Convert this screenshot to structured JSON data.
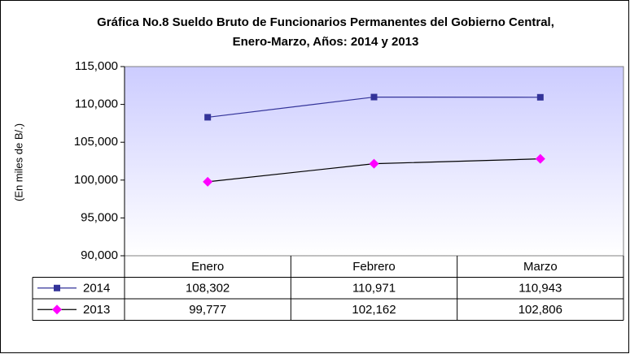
{
  "chart_data": {
    "type": "line",
    "title": "Gráfica No.8 Sueldo Bruto de Funcionarios Permanentes del Gobierno Central, Enero-Marzo, Años: 2014 y 2013",
    "ylabel": "(En miles de B/.)",
    "categories": [
      "Enero",
      "Febrero",
      "Marzo"
    ],
    "series": [
      {
        "name": "2014",
        "color": "#333399",
        "marker_color": "#333399",
        "marker": "square",
        "values": [
          108302,
          110971,
          110943
        ],
        "value_labels": [
          "108,302",
          "110,971",
          "110,943"
        ]
      },
      {
        "name": "2013",
        "color": "#000000",
        "marker_color": "#ff00ff",
        "marker": "diamond",
        "values": [
          99777,
          102162,
          102806
        ],
        "value_labels": [
          "99,777",
          "102,162",
          "102,806"
        ]
      }
    ],
    "ylim": [
      90000,
      115000
    ],
    "yticks": [
      {
        "value": 90000,
        "label": "90,000"
      },
      {
        "value": 95000,
        "label": "95,000"
      },
      {
        "value": 100000,
        "label": "100,000"
      },
      {
        "value": 105000,
        "label": "105,000"
      },
      {
        "value": 110000,
        "label": "110,000"
      },
      {
        "value": 115000,
        "label": "115,000"
      }
    ],
    "grid": false
  }
}
